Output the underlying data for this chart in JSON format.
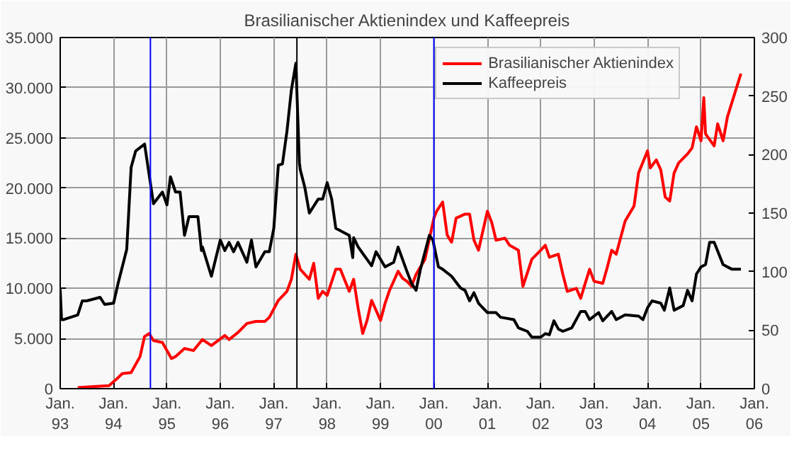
{
  "chart_data": {
    "type": "line",
    "title": "Brasilianischer Aktienindex und Kaffeepreis",
    "xlim": [
      "1993-01",
      "2006-01"
    ],
    "xticks": [
      {
        "value": "1993-01",
        "label": "Jan.\n93"
      },
      {
        "value": "1994-01",
        "label": "Jan.\n94"
      },
      {
        "value": "1995-01",
        "label": "Jan.\n95"
      },
      {
        "value": "1996-01",
        "label": "Jan.\n96"
      },
      {
        "value": "1997-01",
        "label": "Jan.\n97"
      },
      {
        "value": "1998-01",
        "label": "Jan.\n98"
      },
      {
        "value": "1999-01",
        "label": "Jan.\n99"
      },
      {
        "value": "2000-01",
        "label": "Jan.\n00"
      },
      {
        "value": "2001-01",
        "label": "Jan.\n01"
      },
      {
        "value": "2002-01",
        "label": "Jan.\n02"
      },
      {
        "value": "2003-01",
        "label": "Jan.\n03"
      },
      {
        "value": "2004-01",
        "label": "Jan.\n04"
      },
      {
        "value": "2005-01",
        "label": "Jan.\n05"
      },
      {
        "value": "2006-01",
        "label": "Jan.\n06"
      }
    ],
    "ylim": [
      0,
      35000
    ],
    "yticks": [
      0,
      {
        "value": 5000,
        "label": "5.000"
      },
      {
        "value": 10000,
        "label": "10.000"
      },
      {
        "value": 15000,
        "label": "15.000"
      },
      {
        "value": 20000,
        "label": "20.000"
      },
      {
        "value": 25000,
        "label": "25.000"
      },
      {
        "value": 30000,
        "label": "30.000"
      },
      {
        "value": 35000,
        "label": "35.000"
      }
    ],
    "y2lim": [
      0,
      300
    ],
    "y2ticks": [
      0,
      50,
      100,
      150,
      200,
      250,
      300
    ],
    "grid": true,
    "legend": "top right",
    "line_style": "solid",
    "ref_lines": [
      {
        "axis": "x",
        "value": "1994-09-10",
        "color": "#0000ff"
      },
      {
        "axis": "x",
        "value": "1997-06-08",
        "color": "#000000"
      },
      {
        "axis": "x",
        "value": "2000-01",
        "color": "#0000ff"
      }
    ],
    "series": [
      {
        "name": "Brasilianischer Aktienindex",
        "color": "#ff0000",
        "x": [
          "1993-05",
          "1993-08",
          "1993-12",
          "1994-02",
          "1994-03",
          "1994-05",
          "1994-07",
          "1994-08",
          "1994-09",
          "1994-10",
          "1994-12",
          "1995-02",
          "1995-03",
          "1995-05",
          "1995-07",
          "1995-09",
          "1995-11",
          "1996-02",
          "1996-03",
          "1996-05",
          "1996-07",
          "1996-09",
          "1996-11",
          "1996-12",
          "1997-02",
          "1997-04",
          "1997-05",
          "1997-06",
          "1997-07",
          "1997-09",
          "1997-10",
          "1997-11",
          "1997-12",
          "1998-01",
          "1998-03",
          "1998-04",
          "1998-06",
          "1998-07",
          "1998-08",
          "1998-09",
          "1998-10",
          "1998-11",
          "1999-01",
          "1999-02",
          "1999-03",
          "1999-05",
          "1999-06",
          "1999-07",
          "1999-08",
          "1999-09",
          "1999-11",
          "2000-01",
          "2000-01-20",
          "2000-03",
          "2000-04",
          "2000-05",
          "2000-06",
          "2000-08",
          "2000-09",
          "2000-10",
          "2000-11",
          "2001-01",
          "2001-02",
          "2001-03",
          "2001-05",
          "2001-06",
          "2001-08",
          "2001-09",
          "2001-11",
          "2002-01",
          "2002-02",
          "2002-03",
          "2002-05",
          "2002-06",
          "2002-07",
          "2002-09",
          "2002-10",
          "2002-11",
          "2002-12",
          "2003-01",
          "2003-03",
          "2003-04",
          "2003-05",
          "2003-06",
          "2003-08",
          "2003-10",
          "2003-11",
          "2004-01",
          "2004-01-20",
          "2004-03",
          "2004-04",
          "2004-05",
          "2004-06",
          "2004-07",
          "2004-08",
          "2004-10",
          "2004-11",
          "2004-12",
          "2005-01",
          "2005-01-20",
          "2005-02",
          "2005-04",
          "2005-04-25",
          "2005-06",
          "2005-07",
          "2005-09",
          "2005-10"
        ],
        "values": [
          100,
          200,
          300,
          1100,
          1500,
          1600,
          3200,
          5200,
          5500,
          4800,
          4600,
          3000,
          3200,
          4000,
          3800,
          4900,
          4300,
          5300,
          4900,
          5600,
          6500,
          6700,
          6700,
          7100,
          8800,
          9700,
          10900,
          13400,
          11900,
          10900,
          12500,
          9000,
          9700,
          9300,
          11900,
          11900,
          9700,
          10900,
          8000,
          5500,
          6800,
          8800,
          6800,
          8500,
          9700,
          11700,
          11000,
          10700,
          10200,
          11400,
          12900,
          17000,
          17700,
          18600,
          15300,
          14600,
          17000,
          17400,
          17400,
          14800,
          13800,
          17700,
          16500,
          14800,
          15000,
          14300,
          13800,
          10200,
          12900,
          13800,
          14300,
          13100,
          13400,
          11400,
          9700,
          10000,
          9000,
          10500,
          11900,
          10700,
          10500,
          12100,
          13800,
          13400,
          16700,
          18200,
          21500,
          23700,
          22000,
          22800,
          21800,
          19100,
          18700,
          21500,
          22500,
          23400,
          24000,
          26100,
          24700,
          29000,
          25400,
          24200,
          26400,
          24700,
          27100,
          30000,
          31400
        ]
      },
      {
        "name": "Kaffeepreis",
        "color": "#000000",
        "axis": "y2",
        "x": [
          "1993-01",
          "1993-01-10",
          "1993-01-25",
          "1993-05",
          "1993-06",
          "1993-07",
          "1993-10",
          "1993-11",
          "1994-01",
          "1994-02",
          "1994-04",
          "1994-05",
          "1994-06",
          "1994-08",
          "1994-10",
          "1994-12",
          "1995-01",
          "1995-01-25",
          "1995-03",
          "1995-04",
          "1995-05",
          "1995-06",
          "1995-08",
          "1995-08-25",
          "1995-09",
          "1995-11",
          "1996-01",
          "1996-02",
          "1996-03",
          "1996-04",
          "1996-05",
          "1996-07",
          "1996-08",
          "1996-09",
          "1996-11",
          "1996-12",
          "1997-01",
          "1997-02",
          "1997-03",
          "1997-04",
          "1997-05",
          "1997-06",
          "1997-06-25",
          "1997-07",
          "1997-08",
          "1997-09",
          "1997-11",
          "1997-12",
          "1998-01",
          "1998-02",
          "1998-03",
          "1998-06",
          "1998-06-25",
          "1998-07",
          "1998-08",
          "1998-11",
          "1998-12",
          "1999-02",
          "1999-04",
          "1999-05",
          "1999-07",
          "1999-08",
          "1999-09",
          "1999-10",
          "1999-12",
          "1999-12-25",
          "2000-02",
          "2000-03",
          "2000-05",
          "2000-07",
          "2000-08",
          "2000-09",
          "2000-10",
          "2000-11",
          "2001-01",
          "2001-03",
          "2001-04",
          "2001-07",
          "2001-08",
          "2001-10",
          "2001-11",
          "2002-01",
          "2002-02",
          "2002-03",
          "2002-04",
          "2002-05",
          "2002-06",
          "2002-08",
          "2002-10",
          "2002-11",
          "2002-12",
          "2003-02",
          "2003-03",
          "2003-05",
          "2003-06",
          "2003-08",
          "2003-11",
          "2003-12",
          "2004-01",
          "2004-02",
          "2004-04",
          "2004-04-25",
          "2004-06",
          "2004-07",
          "2004-09",
          "2004-10",
          "2004-11",
          "2004-12",
          "2005-01",
          "2005-02",
          "2005-03",
          "2005-04",
          "2005-06",
          "2005-08",
          "2005-10"
        ],
        "values": [
          85,
          59,
          59,
          63,
          75,
          75,
          78,
          72,
          73,
          90,
          119,
          189,
          203,
          209,
          158,
          168,
          157,
          181,
          168,
          168,
          131,
          147,
          147,
          118,
          121,
          96,
          127,
          118,
          125,
          117,
          125,
          108,
          127,
          104,
          117,
          117,
          137,
          191,
          192,
          220,
          255,
          278,
          193,
          187,
          172,
          150,
          162,
          162,
          176,
          162,
          137,
          131,
          112,
          129,
          121,
          105,
          117,
          104,
          108,
          121,
          100,
          90,
          84,
          102,
          131,
          127,
          104,
          102,
          96,
          86,
          84,
          75,
          82,
          73,
          65,
          65,
          61,
          59,
          52,
          49,
          44,
          44,
          47,
          46,
          58,
          51,
          49,
          52,
          66,
          66,
          59,
          65,
          58,
          66,
          59,
          63,
          62,
          59,
          69,
          75,
          73,
          67,
          86,
          67,
          71,
          84,
          75,
          98,
          104,
          106,
          125,
          125,
          106,
          102,
          102
        ]
      }
    ]
  }
}
